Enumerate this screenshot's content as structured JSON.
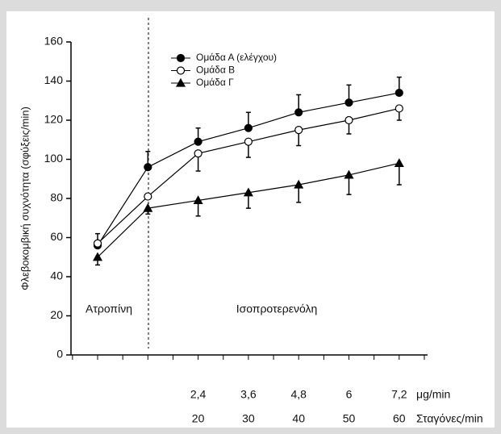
{
  "chart_data": {
    "type": "line",
    "y_label": "Φλεβοκομβική συχνότητα (σφύξεις/min)",
    "ylim": [
      0,
      160
    ],
    "yticks": [
      0,
      20,
      40,
      60,
      80,
      100,
      120,
      140,
      160
    ],
    "categories": [
      null,
      null,
      "2,4",
      "3,6",
      "4,8",
      "6",
      "7,2"
    ],
    "x_unit": "μg/min",
    "categories2": [
      null,
      null,
      20,
      30,
      40,
      50,
      60
    ],
    "x_unit2": "Σταγόνες/min",
    "annotations": [
      "Ατροπίνη",
      "Ισοπροτερενόλη"
    ],
    "series": [
      {
        "name": "Ομάδα Α (ελέγχου)",
        "color": "#000000",
        "marker": "circle",
        "marker_fill": "#000000",
        "values": [
          56,
          96,
          109,
          116,
          124,
          129,
          134
        ],
        "errors": [
          6,
          8,
          7,
          8,
          9,
          9,
          8
        ]
      },
      {
        "name": "Ομάδα Β",
        "color": "#000000",
        "marker": "circle",
        "marker_fill": "#ffffff",
        "values": [
          57,
          81,
          103,
          109,
          115,
          120,
          126
        ],
        "errors": [
          null,
          null,
          9,
          8,
          8,
          7,
          6
        ]
      },
      {
        "name": "Ομάδα Γ",
        "color": "#000000",
        "marker": "triangle",
        "marker_fill": "#000000",
        "values": [
          50,
          75,
          79,
          83,
          87,
          92,
          98
        ],
        "errors": [
          4,
          3,
          8,
          8,
          9,
          10,
          11
        ]
      }
    ]
  }
}
